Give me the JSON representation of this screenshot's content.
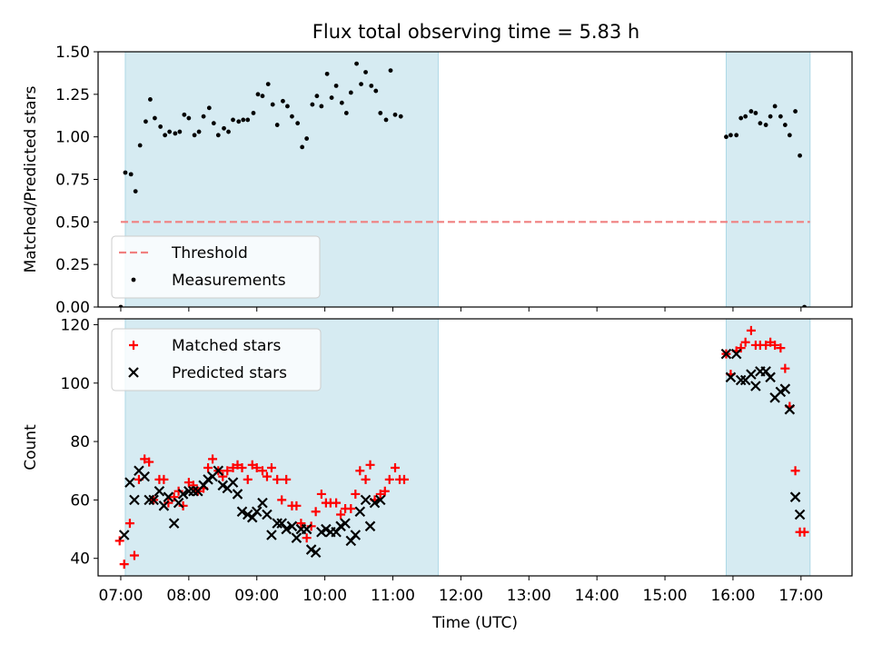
{
  "chart_data": [
    {
      "type": "scatter",
      "title": "Flux total observing time = 5.83 h",
      "ylabel": "Matched/Predicted stars",
      "xlabel": "",
      "ylim": [
        0,
        1.5
      ],
      "yticks": [
        0,
        0.25,
        0.5,
        0.75,
        1.0,
        1.25,
        1.5
      ],
      "ytick_labels": [
        "0.00",
        "0.25",
        "0.50",
        "0.75",
        "1.00",
        "1.25",
        "1.50"
      ],
      "legend_position": "lower-left",
      "shaded_intervals": [
        [
          "07:04",
          "11:40"
        ],
        [
          "15:54",
          "17:08"
        ]
      ],
      "threshold": {
        "name": "Threshold",
        "value": 0.5,
        "x_start": "07:00",
        "x_end": "17:08",
        "color": "#f08080"
      },
      "series": [
        {
          "name": "Measurements",
          "color": "#000000",
          "points": [
            [
              "07:00",
              0.0
            ],
            [
              "07:04",
              0.79
            ],
            [
              "07:09",
              0.78
            ],
            [
              "07:13",
              0.68
            ],
            [
              "07:17",
              0.95
            ],
            [
              "07:22",
              1.09
            ],
            [
              "07:26",
              1.22
            ],
            [
              "07:30",
              1.11
            ],
            [
              "07:35",
              1.06
            ],
            [
              "07:39",
              1.01
            ],
            [
              "07:43",
              1.03
            ],
            [
              "07:48",
              1.02
            ],
            [
              "07:52",
              1.03
            ],
            [
              "07:56",
              1.13
            ],
            [
              "08:00",
              1.11
            ],
            [
              "08:05",
              1.01
            ],
            [
              "08:09",
              1.03
            ],
            [
              "08:13",
              1.12
            ],
            [
              "08:18",
              1.17
            ],
            [
              "08:22",
              1.08
            ],
            [
              "08:26",
              1.01
            ],
            [
              "08:31",
              1.05
            ],
            [
              "08:35",
              1.03
            ],
            [
              "08:39",
              1.1
            ],
            [
              "08:44",
              1.09
            ],
            [
              "08:48",
              1.1
            ],
            [
              "08:52",
              1.1
            ],
            [
              "08:57",
              1.14
            ],
            [
              "09:01",
              1.25
            ],
            [
              "09:05",
              1.24
            ],
            [
              "09:10",
              1.31
            ],
            [
              "09:14",
              1.19
            ],
            [
              "09:18",
              1.07
            ],
            [
              "09:23",
              1.21
            ],
            [
              "09:27",
              1.18
            ],
            [
              "09:31",
              1.12
            ],
            [
              "09:36",
              1.08
            ],
            [
              "09:40",
              0.94
            ],
            [
              "09:44",
              0.99
            ],
            [
              "09:49",
              1.19
            ],
            [
              "09:53",
              1.24
            ],
            [
              "09:57",
              1.18
            ],
            [
              "10:02",
              1.37
            ],
            [
              "10:06",
              1.23
            ],
            [
              "10:10",
              1.3
            ],
            [
              "10:15",
              1.2
            ],
            [
              "10:19",
              1.14
            ],
            [
              "10:23",
              1.26
            ],
            [
              "10:28",
              1.43
            ],
            [
              "10:32",
              1.31
            ],
            [
              "10:36",
              1.38
            ],
            [
              "10:41",
              1.3
            ],
            [
              "10:45",
              1.27
            ],
            [
              "10:49",
              1.14
            ],
            [
              "10:54",
              1.1
            ],
            [
              "10:58",
              1.39
            ],
            [
              "11:02",
              1.13
            ],
            [
              "11:07",
              1.12
            ],
            [
              "15:54",
              1.0
            ],
            [
              "15:58",
              1.01
            ],
            [
              "16:03",
              1.01
            ],
            [
              "16:07",
              1.11
            ],
            [
              "16:11",
              1.12
            ],
            [
              "16:16",
              1.15
            ],
            [
              "16:20",
              1.14
            ],
            [
              "16:24",
              1.08
            ],
            [
              "16:29",
              1.07
            ],
            [
              "16:33",
              1.12
            ],
            [
              "16:37",
              1.18
            ],
            [
              "16:42",
              1.12
            ],
            [
              "16:46",
              1.07
            ],
            [
              "16:50",
              1.01
            ],
            [
              "16:55",
              1.15
            ],
            [
              "16:59",
              0.89
            ],
            [
              "17:03",
              0.0
            ]
          ]
        }
      ]
    },
    {
      "type": "scatter",
      "title": "",
      "ylabel": "Count",
      "xlabel": "Time (UTC)",
      "ylim": [
        34,
        122
      ],
      "yticks": [
        40,
        60,
        80,
        100,
        120
      ],
      "ytick_labels": [
        "40",
        "60",
        "80",
        "100",
        "120"
      ],
      "xlim": [
        "06:40",
        "17:45"
      ],
      "xticks": [
        "07:00",
        "08:00",
        "09:00",
        "10:00",
        "11:00",
        "12:00",
        "13:00",
        "14:00",
        "15:00",
        "16:00",
        "17:00"
      ],
      "legend_position": "upper-left",
      "shaded_intervals": [
        [
          "07:04",
          "11:40"
        ],
        [
          "15:54",
          "17:08"
        ]
      ],
      "series": [
        {
          "name": "Matched stars",
          "color": "#ff0000",
          "marker": "plus",
          "points": [
            [
              "06:59",
              46
            ],
            [
              "07:03",
              38
            ],
            [
              "07:08",
              52
            ],
            [
              "07:12",
              41
            ],
            [
              "07:16",
              67
            ],
            [
              "07:21",
              74
            ],
            [
              "07:25",
              73
            ],
            [
              "07:29",
              60
            ],
            [
              "07:34",
              67
            ],
            [
              "07:38",
              67
            ],
            [
              "07:42",
              59
            ],
            [
              "07:47",
              61
            ],
            [
              "07:51",
              63
            ],
            [
              "07:55",
              58
            ],
            [
              "08:00",
              66
            ],
            [
              "08:04",
              65
            ],
            [
              "08:08",
              63
            ],
            [
              "08:13",
              64
            ],
            [
              "08:17",
              71
            ],
            [
              "08:21",
              74
            ],
            [
              "08:26",
              70
            ],
            [
              "08:30",
              68
            ],
            [
              "08:34",
              70
            ],
            [
              "08:39",
              71
            ],
            [
              "08:43",
              72
            ],
            [
              "08:47",
              71
            ],
            [
              "08:52",
              67
            ],
            [
              "08:56",
              72
            ],
            [
              "09:00",
              71
            ],
            [
              "09:05",
              70
            ],
            [
              "09:09",
              68
            ],
            [
              "09:13",
              71
            ],
            [
              "09:18",
              67
            ],
            [
              "09:22",
              60
            ],
            [
              "09:26",
              67
            ],
            [
              "09:31",
              58
            ],
            [
              "09:35",
              58
            ],
            [
              "09:39",
              52
            ],
            [
              "09:44",
              47
            ],
            [
              "09:48",
              51
            ],
            [
              "09:52",
              56
            ],
            [
              "09:57",
              62
            ],
            [
              "10:01",
              59
            ],
            [
              "10:05",
              59
            ],
            [
              "10:10",
              59
            ],
            [
              "10:14",
              55
            ],
            [
              "10:18",
              57
            ],
            [
              "10:23",
              57
            ],
            [
              "10:27",
              62
            ],
            [
              "10:31",
              70
            ],
            [
              "10:36",
              67
            ],
            [
              "10:40",
              72
            ],
            [
              "10:44",
              60
            ],
            [
              "10:49",
              62
            ],
            [
              "10:53",
              63
            ],
            [
              "10:57",
              67
            ],
            [
              "11:02",
              71
            ],
            [
              "11:06",
              67
            ],
            [
              "11:10",
              67
            ],
            [
              "15:54",
              110
            ],
            [
              "15:58",
              103
            ],
            [
              "16:03",
              111
            ],
            [
              "16:07",
              112
            ],
            [
              "16:11",
              114
            ],
            [
              "16:16",
              118
            ],
            [
              "16:20",
              113
            ],
            [
              "16:24",
              113
            ],
            [
              "16:29",
              113
            ],
            [
              "16:33",
              114
            ],
            [
              "16:37",
              113
            ],
            [
              "16:42",
              112
            ],
            [
              "16:46",
              105
            ],
            [
              "16:50",
              92
            ],
            [
              "16:55",
              70
            ],
            [
              "16:59",
              49
            ],
            [
              "17:03",
              49
            ]
          ]
        },
        {
          "name": "Predicted stars",
          "color": "#000000",
          "marker": "x",
          "points": [
            [
              "07:03",
              48
            ],
            [
              "07:08",
              66
            ],
            [
              "07:12",
              60
            ],
            [
              "07:16",
              70
            ],
            [
              "07:21",
              68
            ],
            [
              "07:25",
              60
            ],
            [
              "07:29",
              60
            ],
            [
              "07:34",
              63
            ],
            [
              "07:38",
              58
            ],
            [
              "07:42",
              61
            ],
            [
              "07:47",
              52
            ],
            [
              "07:51",
              59
            ],
            [
              "07:55",
              62
            ],
            [
              "08:00",
              63
            ],
            [
              "08:04",
              63
            ],
            [
              "08:08",
              63
            ],
            [
              "08:13",
              65
            ],
            [
              "08:17",
              67
            ],
            [
              "08:21",
              68
            ],
            [
              "08:26",
              70
            ],
            [
              "08:30",
              65
            ],
            [
              "08:34",
              64
            ],
            [
              "08:39",
              66
            ],
            [
              "08:43",
              62
            ],
            [
              "08:47",
              56
            ],
            [
              "08:52",
              55
            ],
            [
              "08:56",
              54
            ],
            [
              "09:00",
              56
            ],
            [
              "09:05",
              59
            ],
            [
              "09:09",
              55
            ],
            [
              "09:13",
              48
            ],
            [
              "09:18",
              52
            ],
            [
              "09:22",
              52
            ],
            [
              "09:26",
              50
            ],
            [
              "09:31",
              51
            ],
            [
              "09:35",
              47
            ],
            [
              "09:39",
              50
            ],
            [
              "09:44",
              50
            ],
            [
              "09:48",
              43
            ],
            [
              "09:52",
              42
            ],
            [
              "09:57",
              49
            ],
            [
              "10:01",
              50
            ],
            [
              "10:05",
              49
            ],
            [
              "10:10",
              49
            ],
            [
              "10:14",
              51
            ],
            [
              "10:18",
              52
            ],
            [
              "10:23",
              46
            ],
            [
              "10:27",
              48
            ],
            [
              "10:31",
              56
            ],
            [
              "10:36",
              60
            ],
            [
              "10:40",
              51
            ],
            [
              "10:44",
              59
            ],
            [
              "10:49",
              60
            ],
            [
              "15:54",
              110
            ],
            [
              "15:58",
              102
            ],
            [
              "16:03",
              110
            ],
            [
              "16:07",
              101
            ],
            [
              "16:11",
              101
            ],
            [
              "16:16",
              103
            ],
            [
              "16:20",
              99
            ],
            [
              "16:24",
              104
            ],
            [
              "16:29",
              104
            ],
            [
              "16:33",
              102
            ],
            [
              "16:37",
              95
            ],
            [
              "16:42",
              97
            ],
            [
              "16:46",
              98
            ],
            [
              "16:50",
              91
            ],
            [
              "16:55",
              61
            ],
            [
              "16:59",
              55
            ]
          ]
        }
      ]
    }
  ]
}
